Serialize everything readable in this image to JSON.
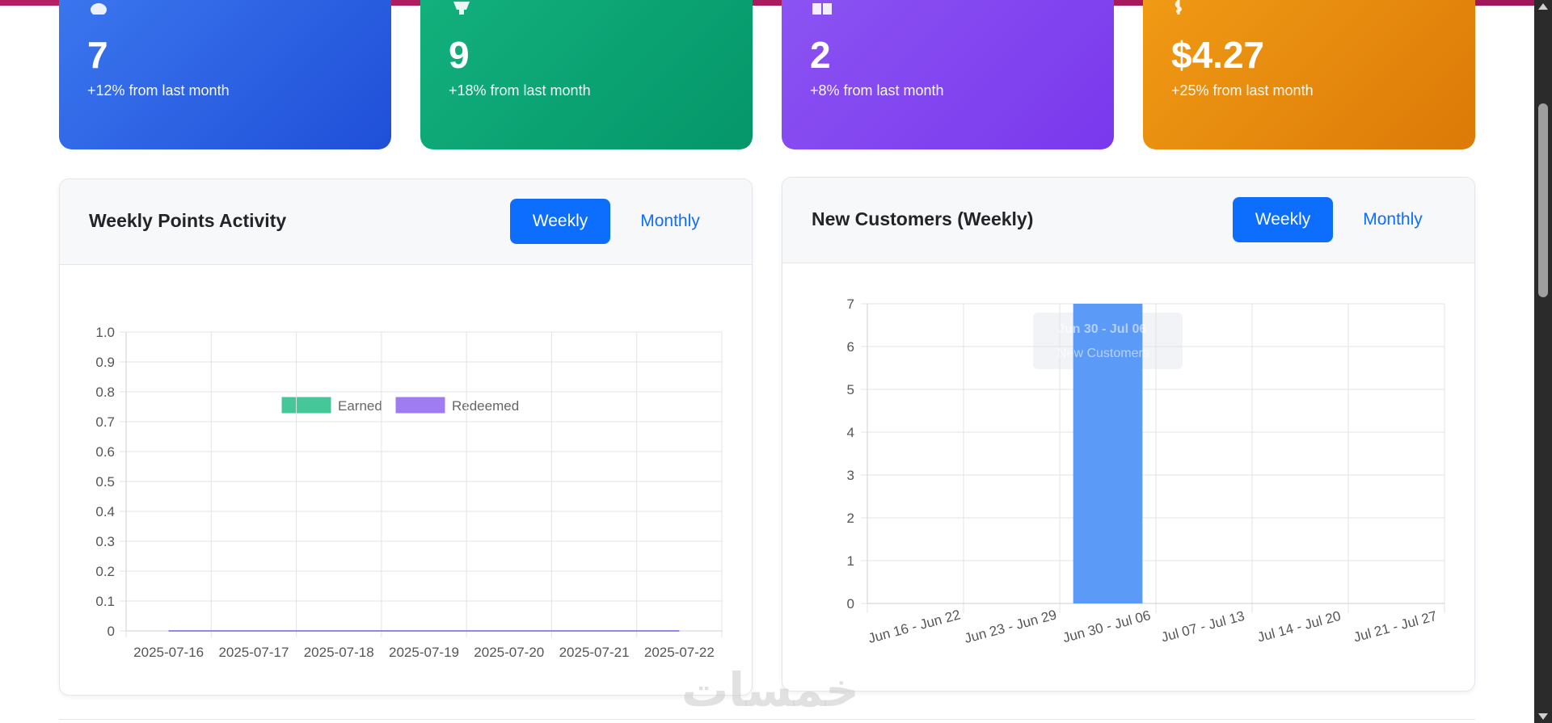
{
  "stats": [
    {
      "value": "7",
      "change": "+12% from last month",
      "icon": "users-icon",
      "color": "#2f6ae6"
    },
    {
      "value": "9",
      "change": "+18% from last month",
      "icon": "trophy-icon",
      "color": "#0ea371"
    },
    {
      "value": "2",
      "change": "+8% from last month",
      "icon": "gift-icon",
      "color": "#8346f0"
    },
    {
      "value": "$4.27",
      "change": "+25% from last month",
      "icon": "dollar-icon",
      "color": "#e8890d"
    }
  ],
  "points_panel": {
    "title": "Weekly Points Activity",
    "weekly_label": "Weekly",
    "monthly_label": "Monthly"
  },
  "customers_panel": {
    "title": "New Customers (Weekly)",
    "weekly_label": "Weekly",
    "monthly_label": "Monthly",
    "tooltip_title": "Jun 30 - Jul 06",
    "tooltip_body": "New Customers"
  },
  "chart_data": [
    {
      "type": "line",
      "categories": [
        "2025-07-16",
        "2025-07-17",
        "2025-07-18",
        "2025-07-19",
        "2025-07-20",
        "2025-07-21",
        "2025-07-22"
      ],
      "series": [
        {
          "name": "Earned",
          "values": [
            0,
            0,
            0,
            0,
            0,
            0,
            0
          ],
          "color": "#45c79a"
        },
        {
          "name": "Redeemed",
          "values": [
            0,
            0,
            0,
            0,
            0,
            0,
            0
          ],
          "color": "#a07cf3"
        }
      ],
      "ylim": [
        0,
        1.0
      ],
      "yticks": [
        "1.0",
        "0.9",
        "0.8",
        "0.7",
        "0.6",
        "0.5",
        "0.4",
        "0.3",
        "0.2",
        "0.1",
        "0"
      ],
      "legend": "top",
      "grid": true
    },
    {
      "type": "bar",
      "categories": [
        "Jun 16 - Jun 22",
        "Jun 23 - Jun 29",
        "Jun 30 - Jul 06",
        "Jul 07 - Jul 13",
        "Jul 14 - Jul 20",
        "Jul 21 - Jul 27"
      ],
      "values": [
        0,
        0,
        7,
        0,
        0,
        0
      ],
      "color": "#5b9af7",
      "ylim": [
        0,
        7
      ],
      "yticks": [
        "7",
        "6",
        "5",
        "4",
        "3",
        "2",
        "1",
        "0"
      ],
      "grid": true
    }
  ],
  "watermark": "خمسات"
}
